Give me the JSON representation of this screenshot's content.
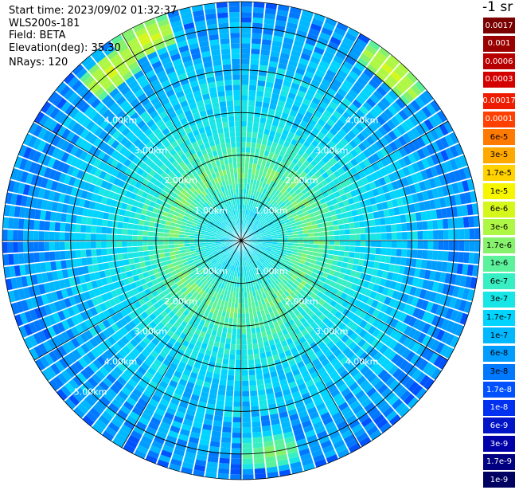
{
  "header": {
    "start_time": "Start time: 2023/09/02 01:32:37",
    "instrument": "WLS200s-181",
    "field": "Field: BETA",
    "elevation": "Elevation(deg): 35.30",
    "nrays": "NRays: 120"
  },
  "colorbar": {
    "unit": "-1 sr",
    "levels": [
      {
        "label": "0.0017",
        "color": "#7a0000",
        "text": "#ffffff"
      },
      {
        "label": "0.001",
        "color": "#9a0000",
        "text": "#ffffff"
      },
      {
        "label": "0.0006",
        "color": "#b80000",
        "text": "#ffffff"
      },
      {
        "label": "0.0003",
        "color": "#d40000",
        "text": "#ffffff"
      },
      {
        "label": "0.00017",
        "color": "#ee1c00",
        "text": "#ffffff"
      },
      {
        "label": "0.0001",
        "color": "#ff4000",
        "text": "#ffffff"
      },
      {
        "label": "6e-5",
        "color": "#ff7a00",
        "text": "#000000"
      },
      {
        "label": "3e-5",
        "color": "#ffa800",
        "text": "#000000"
      },
      {
        "label": "1.7e-5",
        "color": "#ffd200",
        "text": "#000000"
      },
      {
        "label": "1e-5",
        "color": "#f6f600",
        "text": "#000000"
      },
      {
        "label": "6e-6",
        "color": "#d6f71c",
        "text": "#000000"
      },
      {
        "label": "3e-6",
        "color": "#aff745",
        "text": "#000000"
      },
      {
        "label": "1.7e-6",
        "color": "#86f26c",
        "text": "#000000"
      },
      {
        "label": "1e-6",
        "color": "#5cf29c",
        "text": "#000000"
      },
      {
        "label": "6e-7",
        "color": "#38efc4",
        "text": "#000000"
      },
      {
        "label": "3e-7",
        "color": "#18e6e6",
        "text": "#000000"
      },
      {
        "label": "1.7e-7",
        "color": "#00d4ff",
        "text": "#000000"
      },
      {
        "label": "1e-7",
        "color": "#00b8ff",
        "text": "#000000"
      },
      {
        "label": "6e-8",
        "color": "#009cff",
        "text": "#000000"
      },
      {
        "label": "3e-8",
        "color": "#0078ff",
        "text": "#000000"
      },
      {
        "label": "1.7e-8",
        "color": "#0052ff",
        "text": "#ffffff"
      },
      {
        "label": "1e-8",
        "color": "#0030f0",
        "text": "#ffffff"
      },
      {
        "label": "6e-9",
        "color": "#0014c8",
        "text": "#ffffff"
      },
      {
        "label": "3e-9",
        "color": "#0000a8",
        "text": "#ffffff"
      },
      {
        "label": "1.7e-9",
        "color": "#000080",
        "text": "#ffffff"
      },
      {
        "label": "1e-9",
        "color": "#000060",
        "text": "#ffffff"
      }
    ]
  },
  "chart_data": {
    "type": "heatmap",
    "projection": "polar PPI",
    "field": "BETA",
    "unit": "-1 sr",
    "n_rays": 120,
    "elevation_deg": 35.3,
    "range_ring_labels": [
      "1.00km",
      "2.00km",
      "3.00km",
      "4.00km",
      "5.00km"
    ],
    "range_rings_km": [
      1,
      2,
      3,
      4,
      5
    ],
    "radial_spokes_deg": [
      0,
      30,
      60,
      90,
      120,
      150,
      180,
      210,
      240,
      270,
      300,
      330
    ],
    "max_range_km": 5.6,
    "radial_profile": [
      {
        "range_km": 0.0,
        "beta": 2.5e-07
      },
      {
        "range_km": 0.8,
        "beta": 4e-07
      },
      {
        "range_km": 1.6,
        "beta": 1.5e-06
      },
      {
        "range_km": 2.0,
        "beta": 9e-07
      },
      {
        "range_km": 3.0,
        "beta": 3e-07
      },
      {
        "range_km": 4.0,
        "beta": 1.5e-07
      },
      {
        "range_km": 5.0,
        "beta": 8e-08
      },
      {
        "range_km": 5.6,
        "beta": 5e-08
      }
    ],
    "hotspots": [
      {
        "azimuth_deg": 322,
        "range_km": 5.0,
        "beta": 1e-05
      },
      {
        "azimuth_deg": 335,
        "range_km": 5.2,
        "beta": 1e-05
      },
      {
        "azimuth_deg": 42,
        "range_km": 5.3,
        "beta": 1e-05
      },
      {
        "azimuth_deg": 172,
        "range_km": 5.0,
        "beta": 3e-06
      }
    ]
  }
}
